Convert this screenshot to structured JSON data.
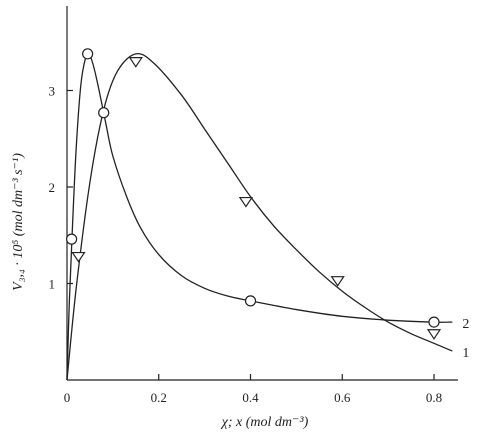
{
  "chart_data": {
    "type": "line",
    "title": "",
    "xlabel": "χ; x (mol dm⁻³)",
    "ylabel": "V₃,₄ · 10⁵ (mol dm⁻³ s⁻¹)",
    "xlim": [
      0,
      0.86
    ],
    "ylim": [
      0,
      3.9
    ],
    "x_ticks": [
      0,
      0.2,
      0.4,
      0.6,
      0.8
    ],
    "x_tick_labels": [
      "0",
      "0.2",
      "0.4",
      "0.6",
      "0.8"
    ],
    "y_ticks": [
      1,
      2,
      3
    ],
    "y_tick_labels": [
      "1",
      "2",
      "3"
    ],
    "grid": false,
    "series": [
      {
        "name": "1",
        "marker": "triangle-down",
        "points": [
          [
            0.025,
            1.28
          ],
          [
            0.15,
            3.3
          ],
          [
            0.39,
            1.85
          ],
          [
            0.59,
            1.03
          ],
          [
            0.8,
            0.48
          ]
        ],
        "curve": [
          [
            0,
            0
          ],
          [
            0.02,
            0.95
          ],
          [
            0.05,
            2.05
          ],
          [
            0.08,
            2.8
          ],
          [
            0.11,
            3.2
          ],
          [
            0.15,
            3.38
          ],
          [
            0.19,
            3.28
          ],
          [
            0.25,
            2.95
          ],
          [
            0.3,
            2.6
          ],
          [
            0.35,
            2.25
          ],
          [
            0.4,
            1.9
          ],
          [
            0.45,
            1.6
          ],
          [
            0.5,
            1.35
          ],
          [
            0.55,
            1.12
          ],
          [
            0.6,
            0.92
          ],
          [
            0.65,
            0.75
          ],
          [
            0.7,
            0.6
          ],
          [
            0.75,
            0.48
          ],
          [
            0.8,
            0.38
          ],
          [
            0.84,
            0.3
          ]
        ]
      },
      {
        "name": "2",
        "marker": "circle",
        "points": [
          [
            0.01,
            1.46
          ],
          [
            0.045,
            3.38
          ],
          [
            0.08,
            2.77
          ],
          [
            0.4,
            0.82
          ],
          [
            0.8,
            0.6
          ]
        ],
        "curve": [
          [
            0,
            0
          ],
          [
            0.005,
            0.8
          ],
          [
            0.012,
            1.6
          ],
          [
            0.02,
            2.4
          ],
          [
            0.03,
            3.05
          ],
          [
            0.04,
            3.33
          ],
          [
            0.048,
            3.38
          ],
          [
            0.058,
            3.25
          ],
          [
            0.07,
            3.0
          ],
          [
            0.085,
            2.65
          ],
          [
            0.1,
            2.32
          ],
          [
            0.13,
            1.9
          ],
          [
            0.16,
            1.58
          ],
          [
            0.2,
            1.3
          ],
          [
            0.25,
            1.08
          ],
          [
            0.3,
            0.95
          ],
          [
            0.35,
            0.87
          ],
          [
            0.4,
            0.82
          ],
          [
            0.5,
            0.73
          ],
          [
            0.6,
            0.66
          ],
          [
            0.7,
            0.62
          ],
          [
            0.8,
            0.6
          ],
          [
            0.84,
            0.6
          ]
        ]
      }
    ]
  }
}
